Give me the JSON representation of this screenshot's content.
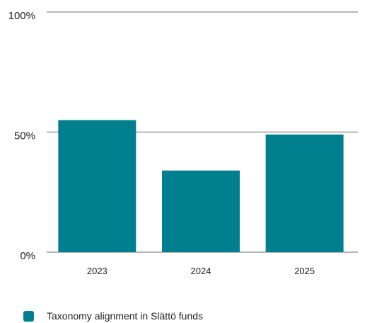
{
  "chart_data": {
    "type": "bar",
    "categories": [
      "2023",
      "2024",
      "2025"
    ],
    "series": [
      {
        "name": "Taxonomy alignment in Slättö funds",
        "values": [
          55,
          34,
          49
        ]
      }
    ],
    "y_ticks": [
      "0%",
      "50%",
      "100%"
    ],
    "y_tick_values": [
      0,
      50,
      100
    ],
    "ylim": [
      0,
      100
    ],
    "grid": true,
    "legend_position": "bottom-left",
    "colors": {
      "bar": "#00808f",
      "grid": "#9e9e9e",
      "text": "#222222"
    }
  }
}
